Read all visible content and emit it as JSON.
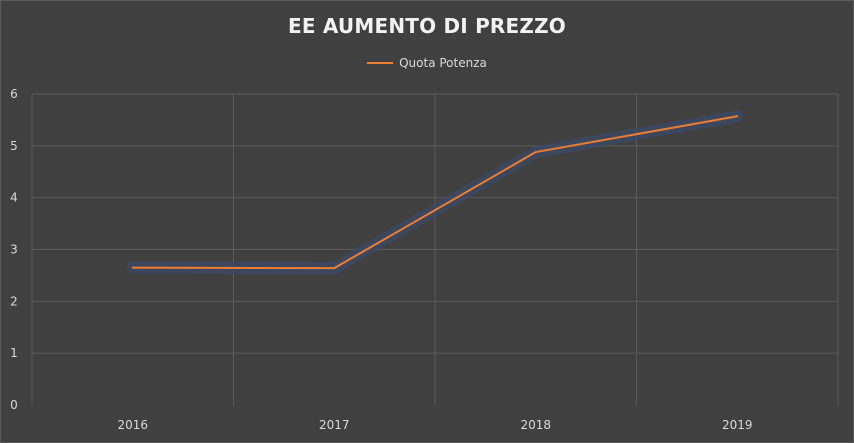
{
  "chart_data": {
    "type": "line",
    "title": "EE AUMENTO DI PREZZO",
    "categories": [
      "2016",
      "2017",
      "2018",
      "2019"
    ],
    "series": [
      {
        "name": "Quota Potenza",
        "values": [
          2.65,
          2.64,
          4.88,
          5.57
        ]
      }
    ],
    "ylim": [
      0,
      6
    ],
    "yticks": [
      "0",
      "1",
      "2",
      "3",
      "4",
      "5",
      "6"
    ],
    "grid": true,
    "legend_position": "top",
    "colors": {
      "background": "#404040",
      "line": "#ed7d31",
      "line_glow": "#3b4a6b",
      "grid": "#5a5a5a",
      "text": "#d9d9d9",
      "title": "#f2f2f2"
    }
  }
}
